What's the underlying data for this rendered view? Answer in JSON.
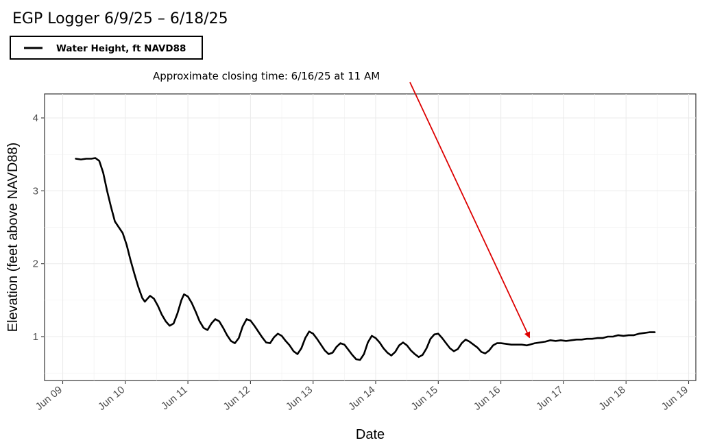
{
  "chart_data": {
    "type": "line",
    "title": "EGP Logger 6/9/25 – 6/18/25",
    "xlabel": "Date",
    "ylabel": "Elevation (feet above NAVD88)",
    "x_tick_labels": [
      "Jun 09",
      "Jun 10",
      "Jun 11",
      "Jun 12",
      "Jun 13",
      "Jun 14",
      "Jun 15",
      "Jun 16",
      "Jun 17",
      "Jun 18",
      "Jun 19"
    ],
    "y_ticks": [
      1,
      2,
      3,
      4
    ],
    "xlim": [
      "2025-06-09T00:00",
      "2025-06-19T00:00"
    ],
    "ylim": [
      0.35,
      4.3
    ],
    "grid": true,
    "legend": {
      "position": "top-left",
      "label": "Water Height, ft NAVD88"
    },
    "annotation": {
      "text": "Approximate closing time: 6/16/25 at 11 AM",
      "arrow_to": {
        "x": "2025-06-16T11:00",
        "y": 0.92
      },
      "color": "#dd0000"
    },
    "series": [
      {
        "name": "Water Height, ft NAVD88",
        "color": "#000000",
        "points": [
          [
            "2025-06-09T05:00",
            3.44
          ],
          [
            "2025-06-09T07:00",
            3.43
          ],
          [
            "2025-06-09T09:00",
            3.44
          ],
          [
            "2025-06-09T11:00",
            3.44
          ],
          [
            "2025-06-09T12:30",
            3.45
          ],
          [
            "2025-06-09T14:00",
            3.41
          ],
          [
            "2025-06-09T15:30",
            3.25
          ],
          [
            "2025-06-09T17:00",
            3.0
          ],
          [
            "2025-06-09T18:30",
            2.78
          ],
          [
            "2025-06-09T20:00",
            2.58
          ],
          [
            "2025-06-09T21:30",
            2.5
          ],
          [
            "2025-06-09T23:00",
            2.42
          ],
          [
            "2025-06-10T00:30",
            2.26
          ],
          [
            "2025-06-10T02:00",
            2.05
          ],
          [
            "2025-06-10T03:30",
            1.86
          ],
          [
            "2025-06-10T05:00",
            1.68
          ],
          [
            "2025-06-10T06:30",
            1.53
          ],
          [
            "2025-06-10T07:30",
            1.48
          ],
          [
            "2025-06-10T08:30",
            1.52
          ],
          [
            "2025-06-10T09:30",
            1.56
          ],
          [
            "2025-06-10T11:00",
            1.52
          ],
          [
            "2025-06-10T12:30",
            1.42
          ],
          [
            "2025-06-10T14:00",
            1.3
          ],
          [
            "2025-06-10T15:30",
            1.21
          ],
          [
            "2025-06-10T17:00",
            1.15
          ],
          [
            "2025-06-10T18:30",
            1.18
          ],
          [
            "2025-06-10T20:00",
            1.32
          ],
          [
            "2025-06-10T21:30",
            1.5
          ],
          [
            "2025-06-10T22:30",
            1.58
          ],
          [
            "2025-06-11T00:00",
            1.55
          ],
          [
            "2025-06-11T01:30",
            1.46
          ],
          [
            "2025-06-11T03:00",
            1.34
          ],
          [
            "2025-06-11T04:30",
            1.21
          ],
          [
            "2025-06-11T06:00",
            1.12
          ],
          [
            "2025-06-11T07:30",
            1.09
          ],
          [
            "2025-06-11T09:00",
            1.18
          ],
          [
            "2025-06-11T10:30",
            1.24
          ],
          [
            "2025-06-11T12:00",
            1.21
          ],
          [
            "2025-06-11T13:30",
            1.12
          ],
          [
            "2025-06-11T15:00",
            1.02
          ],
          [
            "2025-06-11T16:30",
            0.94
          ],
          [
            "2025-06-11T18:00",
            0.91
          ],
          [
            "2025-06-11T19:30",
            0.98
          ],
          [
            "2025-06-11T21:00",
            1.14
          ],
          [
            "2025-06-11T22:30",
            1.24
          ],
          [
            "2025-06-12T00:00",
            1.22
          ],
          [
            "2025-06-12T01:30",
            1.15
          ],
          [
            "2025-06-12T03:00",
            1.07
          ],
          [
            "2025-06-12T04:30",
            0.99
          ],
          [
            "2025-06-12T06:00",
            0.92
          ],
          [
            "2025-06-12T07:30",
            0.91
          ],
          [
            "2025-06-12T09:00",
            0.99
          ],
          [
            "2025-06-12T10:30",
            1.04
          ],
          [
            "2025-06-12T12:00",
            1.01
          ],
          [
            "2025-06-12T13:30",
            0.94
          ],
          [
            "2025-06-12T15:00",
            0.88
          ],
          [
            "2025-06-12T16:30",
            0.8
          ],
          [
            "2025-06-12T18:00",
            0.76
          ],
          [
            "2025-06-12T19:30",
            0.84
          ],
          [
            "2025-06-12T21:00",
            0.98
          ],
          [
            "2025-06-12T22:30",
            1.07
          ],
          [
            "2025-06-13T00:00",
            1.04
          ],
          [
            "2025-06-13T01:30",
            0.97
          ],
          [
            "2025-06-13T03:00",
            0.89
          ],
          [
            "2025-06-13T04:30",
            0.81
          ],
          [
            "2025-06-13T06:00",
            0.76
          ],
          [
            "2025-06-13T07:30",
            0.78
          ],
          [
            "2025-06-13T09:00",
            0.86
          ],
          [
            "2025-06-13T10:30",
            0.91
          ],
          [
            "2025-06-13T12:00",
            0.89
          ],
          [
            "2025-06-13T13:30",
            0.82
          ],
          [
            "2025-06-13T15:00",
            0.75
          ],
          [
            "2025-06-13T16:30",
            0.69
          ],
          [
            "2025-06-13T18:00",
            0.68
          ],
          [
            "2025-06-13T19:30",
            0.76
          ],
          [
            "2025-06-13T21:00",
            0.92
          ],
          [
            "2025-06-13T22:30",
            1.01
          ],
          [
            "2025-06-14T00:00",
            0.98
          ],
          [
            "2025-06-14T01:30",
            0.92
          ],
          [
            "2025-06-14T03:00",
            0.84
          ],
          [
            "2025-06-14T04:30",
            0.78
          ],
          [
            "2025-06-14T06:00",
            0.74
          ],
          [
            "2025-06-14T07:30",
            0.79
          ],
          [
            "2025-06-14T09:00",
            0.88
          ],
          [
            "2025-06-14T10:30",
            0.92
          ],
          [
            "2025-06-14T12:00",
            0.88
          ],
          [
            "2025-06-14T13:30",
            0.81
          ],
          [
            "2025-06-14T15:00",
            0.76
          ],
          [
            "2025-06-14T16:30",
            0.72
          ],
          [
            "2025-06-14T18:00",
            0.75
          ],
          [
            "2025-06-14T19:30",
            0.84
          ],
          [
            "2025-06-14T21:00",
            0.97
          ],
          [
            "2025-06-14T22:30",
            1.03
          ],
          [
            "2025-06-15T00:00",
            1.04
          ],
          [
            "2025-06-15T01:30",
            0.98
          ],
          [
            "2025-06-15T03:00",
            0.91
          ],
          [
            "2025-06-15T04:30",
            0.84
          ],
          [
            "2025-06-15T06:00",
            0.8
          ],
          [
            "2025-06-15T07:30",
            0.83
          ],
          [
            "2025-06-15T09:00",
            0.91
          ],
          [
            "2025-06-15T10:30",
            0.96
          ],
          [
            "2025-06-15T12:00",
            0.93
          ],
          [
            "2025-06-15T13:30",
            0.89
          ],
          [
            "2025-06-15T15:00",
            0.85
          ],
          [
            "2025-06-15T16:30",
            0.79
          ],
          [
            "2025-06-15T18:00",
            0.77
          ],
          [
            "2025-06-15T19:30",
            0.81
          ],
          [
            "2025-06-15T21:00",
            0.88
          ],
          [
            "2025-06-15T22:30",
            0.91
          ],
          [
            "2025-06-16T00:00",
            0.91
          ],
          [
            "2025-06-16T02:00",
            0.9
          ],
          [
            "2025-06-16T04:00",
            0.89
          ],
          [
            "2025-06-16T06:00",
            0.89
          ],
          [
            "2025-06-16T08:00",
            0.89
          ],
          [
            "2025-06-16T10:00",
            0.88
          ],
          [
            "2025-06-16T11:00",
            0.89
          ],
          [
            "2025-06-16T13:00",
            0.91
          ],
          [
            "2025-06-16T15:00",
            0.92
          ],
          [
            "2025-06-16T17:00",
            0.93
          ],
          [
            "2025-06-16T19:00",
            0.95
          ],
          [
            "2025-06-16T21:00",
            0.94
          ],
          [
            "2025-06-16T23:00",
            0.95
          ],
          [
            "2025-06-17T01:00",
            0.94
          ],
          [
            "2025-06-17T03:00",
            0.95
          ],
          [
            "2025-06-17T05:00",
            0.96
          ],
          [
            "2025-06-17T07:00",
            0.96
          ],
          [
            "2025-06-17T09:00",
            0.97
          ],
          [
            "2025-06-17T11:00",
            0.97
          ],
          [
            "2025-06-17T13:00",
            0.98
          ],
          [
            "2025-06-17T15:00",
            0.98
          ],
          [
            "2025-06-17T17:00",
            1.0
          ],
          [
            "2025-06-17T19:00",
            1.0
          ],
          [
            "2025-06-17T21:00",
            1.02
          ],
          [
            "2025-06-17T23:00",
            1.01
          ],
          [
            "2025-06-18T01:00",
            1.02
          ],
          [
            "2025-06-18T03:00",
            1.02
          ],
          [
            "2025-06-18T05:00",
            1.04
          ],
          [
            "2025-06-18T07:00",
            1.05
          ],
          [
            "2025-06-18T09:00",
            1.06
          ],
          [
            "2025-06-18T11:00",
            1.06
          ]
        ]
      }
    ]
  }
}
